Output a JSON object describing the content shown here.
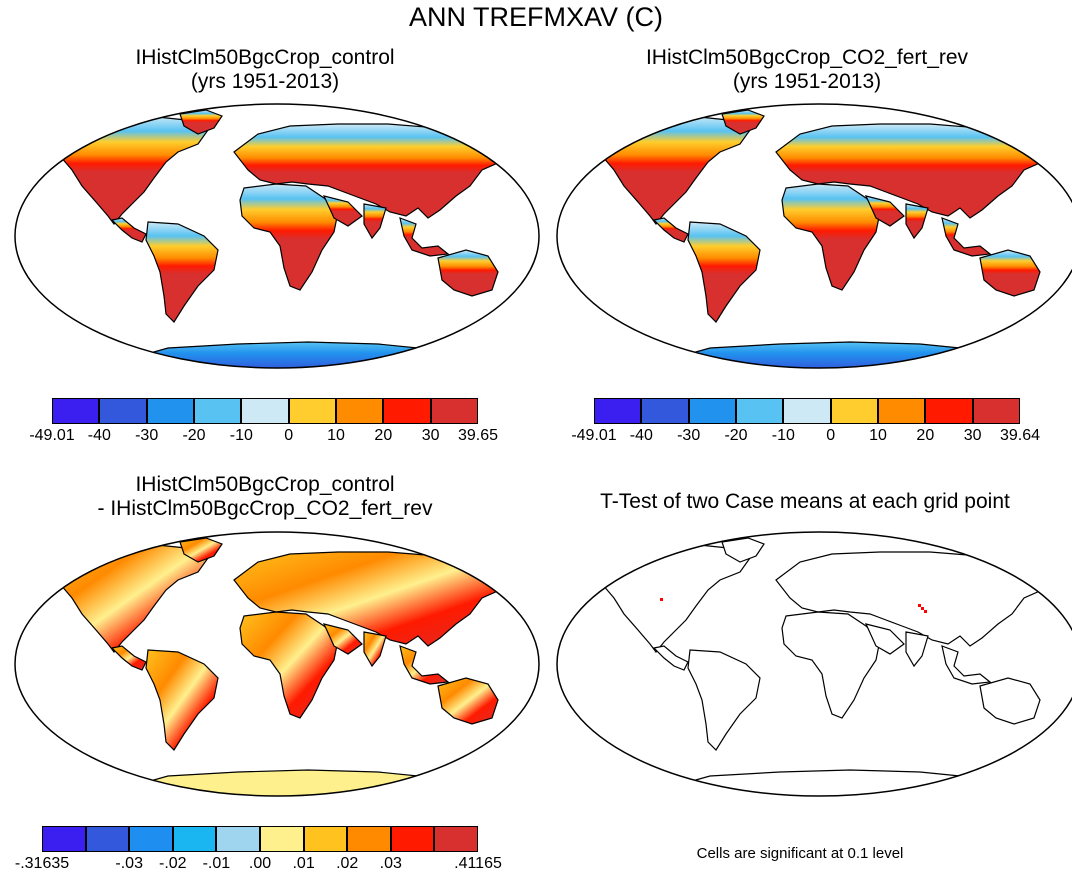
{
  "figure_title": "ANN TREFMXAV (C)",
  "panels": [
    {
      "title_line1": "IHistClm50BgcCrop_control",
      "title_line2": "(yrs 1951-2013)",
      "colorbar": {
        "colors": [
          "#3a1ff0",
          "#3358dc",
          "#2192ee",
          "#58c2f2",
          "#cde9f6",
          "#ffce2e",
          "#ff8c00",
          "#ff1a00",
          "#d8302f"
        ],
        "labels": [
          "-49.01",
          "-40",
          "-30",
          "-20",
          "-10",
          "0",
          "10",
          "20",
          "30",
          "39.65"
        ]
      }
    },
    {
      "title_line1": "IHistClm50BgcCrop_CO2_fert_rev",
      "title_line2": "(yrs 1951-2013)",
      "colorbar": {
        "colors": [
          "#3a1ff0",
          "#3358dc",
          "#2192ee",
          "#58c2f2",
          "#cde9f6",
          "#ffce2e",
          "#ff8c00",
          "#ff1a00",
          "#d8302f"
        ],
        "labels": [
          "-49.01",
          "-40",
          "-30",
          "-20",
          "-10",
          "0",
          "10",
          "20",
          "30",
          "39.64"
        ]
      }
    },
    {
      "title_line1": "IHistClm50BgcCrop_control",
      "title_line2": "- IHistClm50BgcCrop_CO2_fert_rev",
      "colorbar": {
        "colors": [
          "#3a1ff0",
          "#3358dc",
          "#1e8ff0",
          "#19b6f2",
          "#9fd5ee",
          "#fff08e",
          "#ffc21e",
          "#ff8a00",
          "#ff1a00",
          "#d8302f"
        ],
        "labels": [
          "-.31635",
          "",
          "-.03",
          "-.02",
          "-.01",
          ".00",
          ".01",
          ".02",
          ".03",
          "",
          ".41165"
        ]
      }
    },
    {
      "title_line1": "T-Test of two Case means at each grid point",
      "note": "Cells are significant at 0.1 level"
    }
  ]
}
